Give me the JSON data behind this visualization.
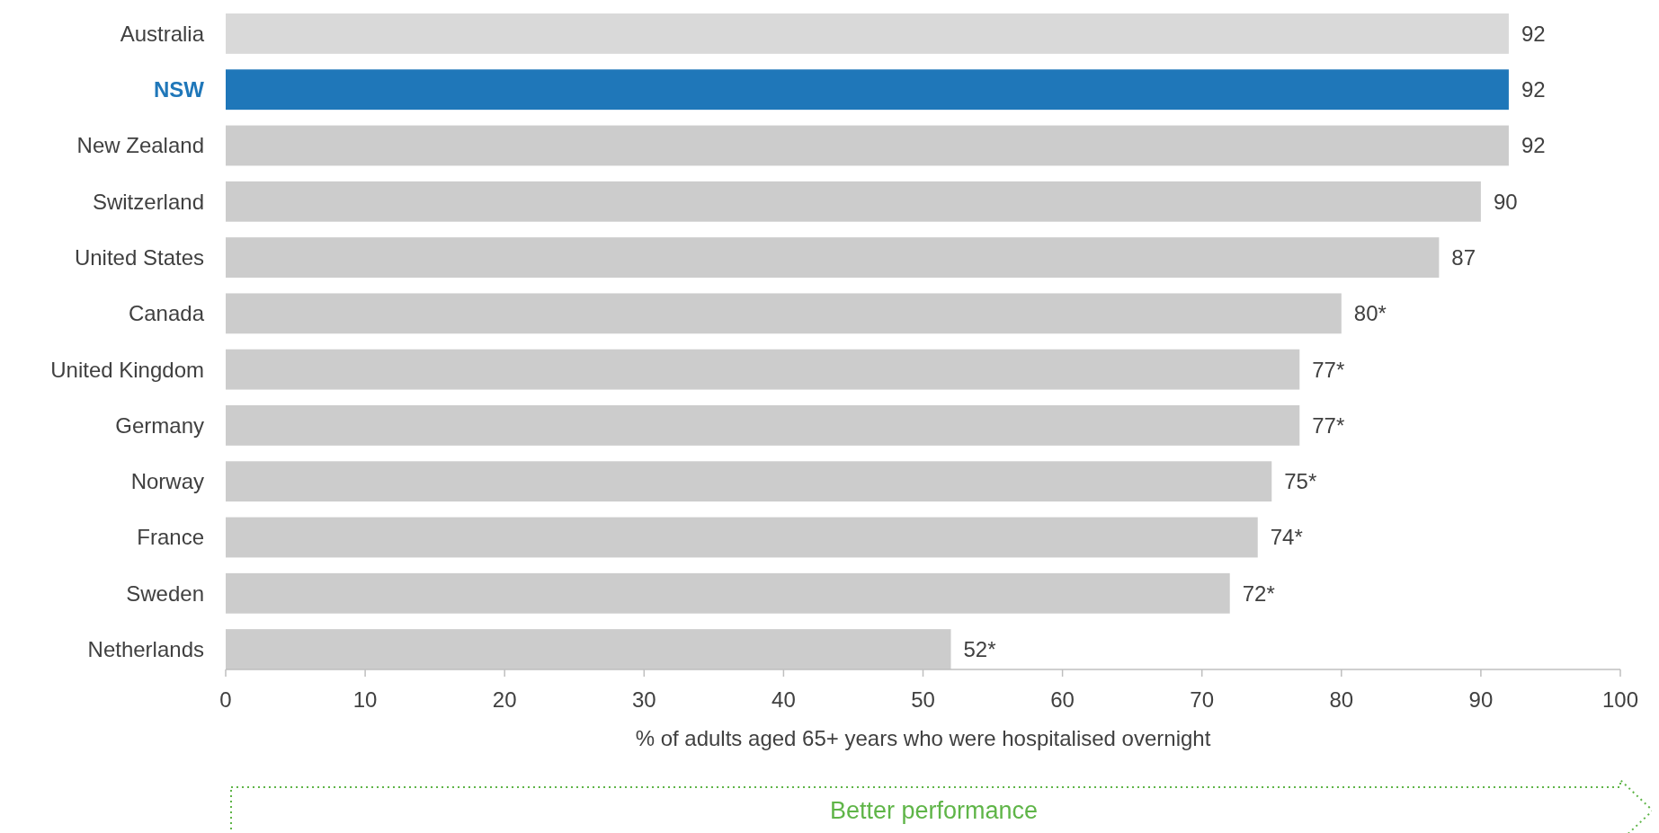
{
  "chart_data": {
    "type": "bar",
    "orientation": "horizontal",
    "categories": [
      "Australia",
      "NSW",
      "New Zealand",
      "Switzerland",
      "United States",
      "Canada",
      "United Kingdom",
      "Germany",
      "Norway",
      "France",
      "Sweden",
      "Netherlands"
    ],
    "values": [
      92,
      92,
      92,
      90,
      87,
      80,
      77,
      77,
      75,
      74,
      72,
      52
    ],
    "colors": [
      "#d9d9d9",
      "#1f77b9",
      "#cccccc",
      "#cccccc",
      "#cccccc",
      "#cccccc",
      "#cccccc",
      "#cccccc",
      "#cccccc",
      "#cccccc",
      "#cccccc",
      "#cccccc"
    ],
    "value_labels": [
      "92",
      "92",
      "92",
      "90",
      "87",
      "80*",
      "77*",
      "77*",
      "75*",
      "74*",
      "72*",
      "52*"
    ],
    "xlim": [
      0,
      100
    ],
    "xticks": [
      0,
      10,
      20,
      30,
      40,
      50,
      60,
      70,
      80,
      90,
      100
    ],
    "xlabel": "% of adults aged 65+ years who were hospitalised overnight",
    "annotations": [
      "Better performance"
    ]
  }
}
